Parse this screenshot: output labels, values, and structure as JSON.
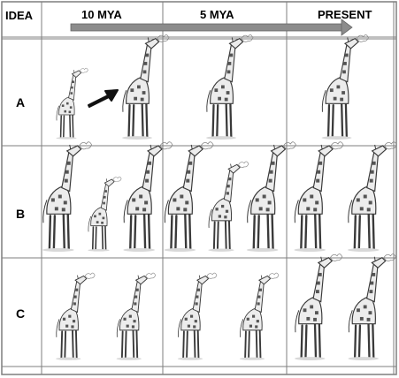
{
  "header": {
    "idea_label": "IDEA",
    "timeline": [
      "10 MYA",
      "5 MYA",
      "PRESENT"
    ]
  },
  "rows": [
    {
      "label": "A",
      "cells": [
        [
          "short",
          "tall"
        ],
        [
          "tall"
        ],
        [
          "tall"
        ]
      ],
      "arrow_in_first_cell": true
    },
    {
      "label": "B",
      "cells": [
        [
          "tall",
          "short",
          "tall"
        ],
        [
          "tall",
          "medium",
          "tall"
        ],
        [
          "tall",
          "tall"
        ]
      ],
      "arrow_in_first_cell": false
    },
    {
      "label": "C",
      "cells": [
        [
          "medium",
          "medium"
        ],
        [
          "medium",
          "medium"
        ],
        [
          "tall",
          "tall"
        ]
      ],
      "arrow_in_first_cell": false
    }
  ],
  "colors": {
    "grid_line": "#7f7f7f",
    "timeline_arrow": "#8c8c8c",
    "giraffe_outline": "#3a3a3a",
    "giraffe_fill": "#ececec",
    "giraffe_spots": "#555555"
  }
}
